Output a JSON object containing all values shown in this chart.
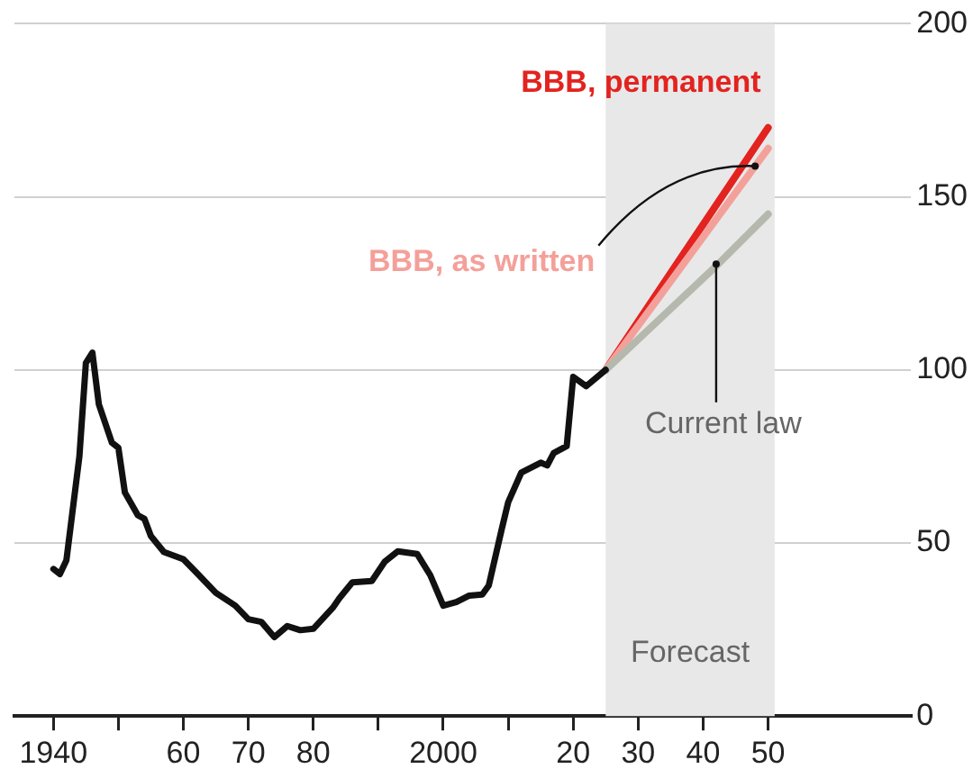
{
  "chart_data": {
    "type": "line",
    "xlim": [
      1934,
      2072
    ],
    "ylim": [
      0,
      200
    ],
    "xticks": [
      {
        "value": 1940,
        "label": "1940"
      },
      {
        "value": 1950,
        "label": null
      },
      {
        "value": 1960,
        "label": "60"
      },
      {
        "value": 1970,
        "label": "70"
      },
      {
        "value": 1980,
        "label": "80"
      },
      {
        "value": 1990,
        "label": null
      },
      {
        "value": 2000,
        "label": "2000"
      },
      {
        "value": 2010,
        "label": null
      },
      {
        "value": 2020,
        "label": "20"
      },
      {
        "value": 2030,
        "label": "30"
      },
      {
        "value": 2040,
        "label": "40"
      },
      {
        "value": 2050,
        "label": "50"
      }
    ],
    "yticks": [
      0,
      50,
      100,
      150,
      200
    ],
    "grid": "y",
    "legend": false,
    "marker": "none",
    "line_style": "solid",
    "bands": [
      {
        "axis": "x",
        "from": 2025,
        "to": 2051,
        "label": "Forecast",
        "color": "#e8e8e8"
      }
    ],
    "series": [
      {
        "color": "#111111",
        "x": [
          1940,
          1941,
          1942,
          1944,
          1945,
          1946,
          1947,
          1949,
          1950,
          1951,
          1953,
          1954,
          1955,
          1957,
          1960,
          1962,
          1965,
          1968,
          1970,
          1972,
          1974,
          1976,
          1978,
          1980,
          1983,
          1984,
          1986,
          1989,
          1991,
          1993,
          1996,
          1998,
          2000,
          2002,
          2004,
          2006,
          2007,
          2009,
          2010,
          2012,
          2015,
          2016,
          2017,
          2019,
          2020,
          2022,
          2025
        ],
        "values": [
          42.5,
          41,
          45,
          75,
          102,
          105,
          90,
          79,
          77.5,
          64.6,
          58,
          57,
          52,
          47.4,
          45.3,
          41.5,
          35.6,
          31.9,
          28,
          27.2,
          22.8,
          26,
          24.8,
          25.2,
          31.3,
          34,
          38.6,
          39,
          44.6,
          47.6,
          46.8,
          40.7,
          31.9,
          32.9,
          34.8,
          35.1,
          37.7,
          54,
          61.8,
          70.3,
          73.2,
          72.4,
          76,
          78,
          98,
          95.3,
          100
        ]
      },
      {
        "name": "Current law",
        "color": "#b5b8ad",
        "x": [
          2025,
          2042,
          2050
        ],
        "values": [
          100,
          130,
          145
        ]
      },
      {
        "name": "BBB, as written",
        "color": "#f4a09a",
        "x": [
          2025,
          2050
        ],
        "values": [
          100,
          164
        ]
      },
      {
        "name": "BBB, permanent",
        "color": "#e3231f",
        "x": [
          2025,
          2050
        ],
        "values": [
          100,
          170
        ]
      }
    ]
  }
}
